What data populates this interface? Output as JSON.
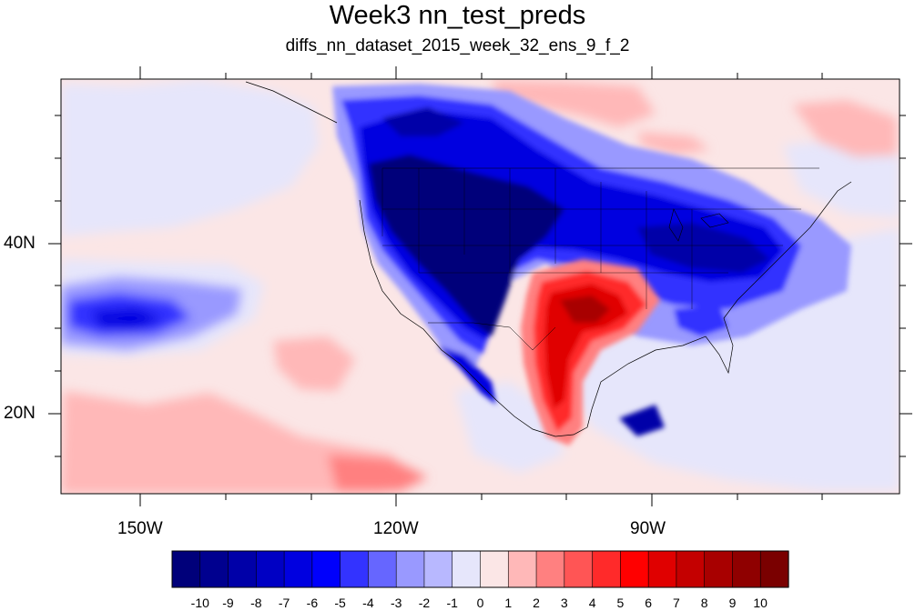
{
  "title": "Week3 nn_test_preds",
  "subtitle": "diffs_nn_dataset_2015_week_32_ens_9_f_2",
  "axes": {
    "lon_labels": [
      "150W",
      "120W",
      "90W"
    ],
    "lat_labels": [
      "40N",
      "20N"
    ]
  },
  "colorbar": {
    "labels": [
      "-10",
      "-9",
      "-8",
      "-7",
      "-6",
      "-5",
      "-4",
      "-3",
      "-2",
      "-1",
      "0",
      "1",
      "2",
      "3",
      "4",
      "5",
      "6",
      "7",
      "8",
      "9",
      "10"
    ],
    "colors": [
      "#00007a",
      "#00008f",
      "#0000a8",
      "#0000c4",
      "#0000e0",
      "#0000fc",
      "#3333ff",
      "#6666ff",
      "#9999ff",
      "#b8b8ff",
      "#e6e6fb",
      "#fbe6e6",
      "#ffb8b8",
      "#ff8080",
      "#ff5555",
      "#ff2a2a",
      "#ff0000",
      "#e00000",
      "#c40000",
      "#a80000",
      "#8f0000",
      "#7a0000"
    ]
  },
  "colors": {
    "ocean_background": "#fbe6e6",
    "strong_negative": "#00007a",
    "strong_positive": "#e00000"
  }
}
